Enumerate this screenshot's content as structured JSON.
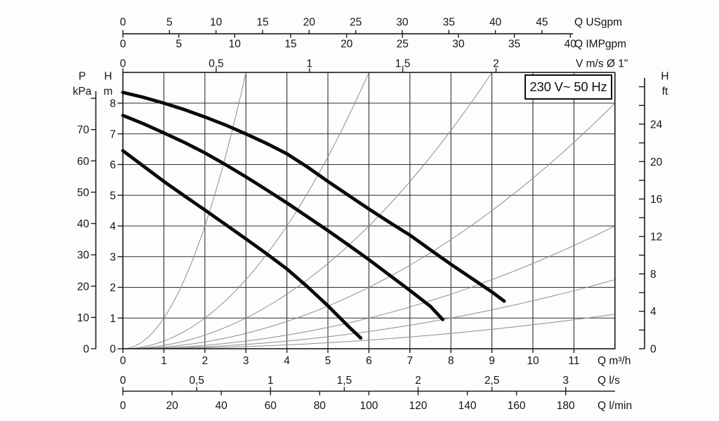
{
  "power_label": "230 V~ 50 Hz",
  "chart_data": {
    "type": "line",
    "colors": {
      "background": "#fdfdfd",
      "grid": "#2e2e2e",
      "border": "#1c1c1c",
      "pump_curve": "#0a0a0a",
      "pipe_curve": "#8d8d8d",
      "text": "#141414",
      "box_border": "#0d0d0d"
    },
    "axis_ranges": {
      "q_m3h": [
        0,
        12
      ],
      "h_m": [
        0,
        9
      ]
    },
    "grid": {
      "x_step_m3h": 1,
      "y_step_m": 1
    },
    "x_axes": [
      {
        "id": "usgpm",
        "label": "Q USgpm",
        "m3h_per_unit": 0.227125,
        "values": [
          0,
          5,
          10,
          15,
          20,
          25,
          30,
          35,
          40,
          45
        ],
        "labels": [
          "0",
          "5",
          "10",
          "15",
          "20",
          "25",
          "30",
          "35",
          "40",
          "45"
        ]
      },
      {
        "id": "impgpm",
        "label": "Q IMPgpm",
        "m3h_per_unit": 0.272766,
        "values": [
          0,
          5,
          10,
          15,
          20,
          25,
          30,
          35,
          40
        ],
        "labels": [
          "0",
          "5",
          "10",
          "15",
          "20",
          "25",
          "30",
          "35",
          "40"
        ]
      },
      {
        "id": "velocity",
        "label": "V m/s Ø 1\"",
        "m3h_per_unit": 4.55,
        "values": [
          0,
          0.5,
          1,
          1.5,
          2
        ],
        "labels": [
          "0",
          "0,5",
          "1",
          "1,5",
          "2"
        ]
      },
      {
        "id": "m3h",
        "label": "Q m³/h",
        "m3h_per_unit": 1,
        "values": [
          0,
          1,
          2,
          3,
          4,
          5,
          6,
          7,
          8,
          9,
          10,
          11
        ],
        "labels": [
          "0",
          "1",
          "2",
          "3",
          "4",
          "5",
          "6",
          "7",
          "8",
          "9",
          "10",
          "11"
        ]
      },
      {
        "id": "ls",
        "label": "Q l/s",
        "m3h_per_unit": 3.6,
        "values": [
          0,
          0.5,
          1,
          1.5,
          2,
          2.5,
          3
        ],
        "labels": [
          "0",
          "0,5",
          "1",
          "1,5",
          "2",
          "2,5",
          "3"
        ]
      },
      {
        "id": "lmin",
        "label": "Q l/min",
        "m3h_per_unit": 0.06,
        "values": [
          0,
          20,
          40,
          60,
          80,
          100,
          120,
          140,
          160,
          180
        ],
        "labels": [
          "0",
          "20",
          "40",
          "60",
          "80",
          "100",
          "120",
          "140",
          "160",
          "180"
        ]
      }
    ],
    "y_axes": [
      {
        "id": "kpa",
        "label_top": "P",
        "label_unit": "kPa",
        "m_per_unit": 0.101972,
        "values": [
          0,
          10,
          20,
          30,
          40,
          50,
          60,
          70,
          80
        ],
        "labels": [
          "0",
          "10",
          "20",
          "30",
          "40",
          "50",
          "60",
          "70",
          ""
        ]
      },
      {
        "id": "m",
        "label_top": "H",
        "label_unit": "m",
        "m_per_unit": 1,
        "values": [
          0,
          1,
          2,
          3,
          4,
          5,
          6,
          7,
          8
        ],
        "labels": [
          "0",
          "1",
          "2",
          "3",
          "4",
          "5",
          "6",
          "7",
          "8"
        ]
      },
      {
        "id": "ft",
        "label_top": "H",
        "label_unit": "ft",
        "m_per_unit": 0.3048,
        "values": [
          0,
          2,
          4,
          6,
          8,
          10,
          12,
          14,
          16,
          18,
          20,
          22,
          24,
          26,
          28
        ],
        "labels": [
          "0",
          "",
          "4",
          "",
          "8",
          "",
          "12",
          "",
          "16",
          "",
          "20",
          "",
          "24",
          "",
          ""
        ]
      }
    ],
    "pump_curves": [
      {
        "name": "speed-upper",
        "points": [
          [
            0,
            8.35
          ],
          [
            0.5,
            8.19
          ],
          [
            1,
            8.0
          ],
          [
            1.5,
            7.79
          ],
          [
            2,
            7.55
          ],
          [
            2.5,
            7.29
          ],
          [
            3,
            7.0
          ],
          [
            3.5,
            6.69
          ],
          [
            4,
            6.35
          ],
          [
            4.5,
            5.92
          ],
          [
            5,
            5.45
          ],
          [
            5.5,
            5.0
          ],
          [
            6,
            4.55
          ],
          [
            6.5,
            4.12
          ],
          [
            7,
            3.7
          ],
          [
            7.5,
            3.22
          ],
          [
            8,
            2.75
          ],
          [
            8.5,
            2.3
          ],
          [
            9,
            1.85
          ],
          [
            9.3,
            1.55
          ]
        ]
      },
      {
        "name": "speed-middle",
        "points": [
          [
            0,
            7.6
          ],
          [
            0.5,
            7.33
          ],
          [
            1,
            7.03
          ],
          [
            1.5,
            6.72
          ],
          [
            2,
            6.38
          ],
          [
            2.5,
            6.0
          ],
          [
            3,
            5.6
          ],
          [
            3.5,
            5.18
          ],
          [
            4,
            4.75
          ],
          [
            4.5,
            4.3
          ],
          [
            5,
            3.85
          ],
          [
            5.5,
            3.38
          ],
          [
            6,
            2.9
          ],
          [
            6.5,
            2.4
          ],
          [
            7,
            1.9
          ],
          [
            7.5,
            1.38
          ],
          [
            7.8,
            0.95
          ]
        ]
      },
      {
        "name": "speed-lower",
        "points": [
          [
            0,
            6.45
          ],
          [
            0.5,
            5.95
          ],
          [
            1,
            5.45
          ],
          [
            1.5,
            4.98
          ],
          [
            2,
            4.52
          ],
          [
            2.5,
            4.05
          ],
          [
            3,
            3.58
          ],
          [
            3.5,
            3.1
          ],
          [
            4,
            2.6
          ],
          [
            4.5,
            2.02
          ],
          [
            5,
            1.4
          ],
          [
            5.5,
            0.73
          ],
          [
            5.8,
            0.35
          ]
        ]
      }
    ],
    "pipe_loss_parabolas": {
      "formula": "h_m = q_m3h^2 / n",
      "n_values": [
        1,
        4,
        9,
        18,
        36,
        64,
        128
      ]
    }
  }
}
